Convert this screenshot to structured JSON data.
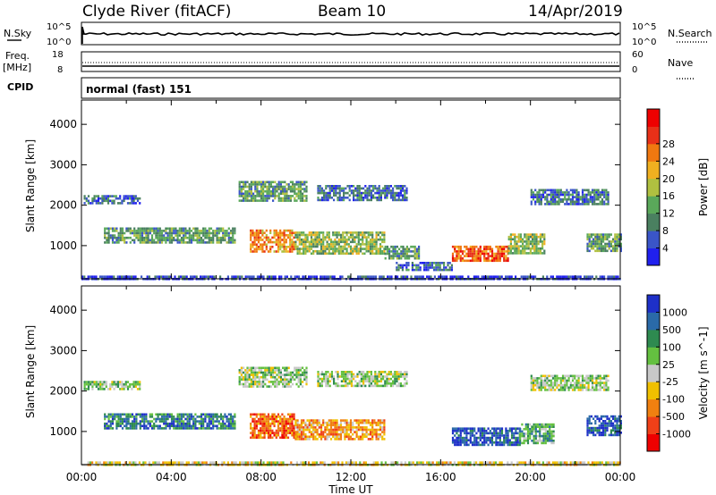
{
  "header": {
    "station": "Clyde River (fitACF)",
    "beam": "Beam 10",
    "date": "14/Apr/2019"
  },
  "strip_nsky": {
    "left_label": "N.Sky",
    "right_label": "N.Search",
    "left_ticks": [
      "10^5",
      "10^0"
    ],
    "right_ticks": [
      "10^5",
      "10^0"
    ]
  },
  "strip_freq": {
    "left_label_1": "Freq.",
    "left_label_2": "[MHz]",
    "right_label": "Nave",
    "left_ticks": [
      "18",
      "8"
    ],
    "right_ticks": [
      "60",
      "0"
    ]
  },
  "cpid": {
    "label": "CPID",
    "value": "normal (fast) 151"
  },
  "chart_data": [
    {
      "type": "heatmap",
      "ylabel": "Slant Range [km]",
      "xlabel": "Time UT",
      "x_ticks": [
        "00:00",
        "04:00",
        "08:00",
        "12:00",
        "16:00",
        "20:00",
        "00:00"
      ],
      "y_ticks": [
        "1000",
        "2000",
        "3000",
        "4000"
      ],
      "xlim": [
        0,
        24
      ],
      "ylim": [
        180,
        4600
      ],
      "colorbar": {
        "label": "Power [dB]",
        "ticks": [
          "4",
          "8",
          "12",
          "16",
          "20",
          "24",
          "28"
        ],
        "colors": [
          "#2020ee",
          "#3a55c8",
          "#4a8060",
          "#5aa85a",
          "#b0c040",
          "#f0b020",
          "#f07810",
          "#e83018",
          "#ee0000"
        ]
      },
      "bands": [
        {
          "t0": 0.1,
          "t1": 2.6,
          "r0": 2050,
          "r1": 2250,
          "level": 2
        },
        {
          "t0": 1.0,
          "t1": 6.8,
          "r0": 1100,
          "r1": 1450,
          "level": 3
        },
        {
          "t0": 7.5,
          "t1": 9.5,
          "r0": 850,
          "r1": 1400,
          "level": 6
        },
        {
          "t0": 9.5,
          "t1": 13.5,
          "r0": 800,
          "r1": 1350,
          "level": 4
        },
        {
          "t0": 13.5,
          "t1": 15.0,
          "r0": 700,
          "r1": 1000,
          "level": 3
        },
        {
          "t0": 16.5,
          "t1": 19.0,
          "r0": 650,
          "r1": 1000,
          "level": 7
        },
        {
          "t0": 19.0,
          "t1": 20.6,
          "r0": 800,
          "r1": 1300,
          "level": 4
        },
        {
          "t0": 7.0,
          "t1": 10.0,
          "r0": 2100,
          "r1": 2600,
          "level": 3
        },
        {
          "t0": 10.5,
          "t1": 14.5,
          "r0": 2100,
          "r1": 2500,
          "level": 2
        },
        {
          "t0": 20.0,
          "t1": 23.5,
          "r0": 2050,
          "r1": 2400,
          "level": 2
        },
        {
          "t0": 22.5,
          "t1": 24.0,
          "r0": 850,
          "r1": 1300,
          "level": 3
        },
        {
          "t0": 14.0,
          "t1": 16.5,
          "r0": 400,
          "r1": 600,
          "level": 2
        },
        {
          "t0": 0.0,
          "t1": 24.0,
          "r0": 190,
          "r1": 260,
          "level": 1
        }
      ]
    },
    {
      "type": "heatmap",
      "ylabel": "Slant Range [km]",
      "xlabel": "Time UT",
      "x_ticks": [
        "00:00",
        "04:00",
        "08:00",
        "12:00",
        "16:00",
        "20:00",
        "00:00"
      ],
      "y_ticks": [
        "1000",
        "2000",
        "3000",
        "4000"
      ],
      "xlim": [
        0,
        24
      ],
      "ylim": [
        180,
        4600
      ],
      "colorbar": {
        "label": "Velocity [m s^-1]",
        "ticks": [
          "1000",
          "500",
          "100",
          "25",
          "-25",
          "-100",
          "-500",
          "-1000"
        ],
        "colors": [
          "#1e30c8",
          "#2a6aa8",
          "#2e8a50",
          "#64c040",
          "#c8c8c8",
          "#f0c000",
          "#f08010",
          "#f04018",
          "#ee0000"
        ]
      },
      "bands": [
        {
          "t0": 0.1,
          "t1": 2.6,
          "r0": 2050,
          "r1": 2250,
          "level": 4
        },
        {
          "t0": 1.0,
          "t1": 6.8,
          "r0": 1100,
          "r1": 1450,
          "level": 2
        },
        {
          "t0": 7.5,
          "t1": 9.5,
          "r0": 850,
          "r1": 1450,
          "level": 7
        },
        {
          "t0": 9.5,
          "t1": 13.5,
          "r0": 800,
          "r1": 1300,
          "level": 6
        },
        {
          "t0": 16.5,
          "t1": 19.5,
          "r0": 650,
          "r1": 1100,
          "level": 1
        },
        {
          "t0": 19.5,
          "t1": 21.0,
          "r0": 700,
          "r1": 1200,
          "level": 3
        },
        {
          "t0": 7.0,
          "t1": 10.0,
          "r0": 2100,
          "r1": 2600,
          "level": 4
        },
        {
          "t0": 10.5,
          "t1": 14.5,
          "r0": 2100,
          "r1": 2500,
          "level": 4
        },
        {
          "t0": 20.0,
          "t1": 23.5,
          "r0": 2050,
          "r1": 2400,
          "level": 4
        },
        {
          "t0": 22.5,
          "t1": 24.0,
          "r0": 900,
          "r1": 1400,
          "level": 1
        },
        {
          "t0": 0.0,
          "t1": 24.0,
          "r0": 190,
          "r1": 260,
          "level": 5
        }
      ]
    }
  ]
}
